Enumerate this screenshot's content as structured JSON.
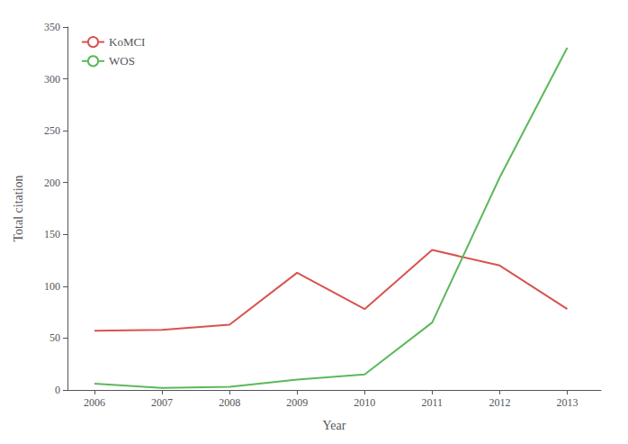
{
  "chart_data": {
    "type": "line",
    "x": [
      2006,
      2007,
      2008,
      2009,
      2010,
      2011,
      2012,
      2013
    ],
    "series": [
      {
        "name": "KoMCI",
        "color": "#d9534f",
        "values": [
          57,
          58,
          63,
          113,
          78,
          135,
          120,
          78
        ]
      },
      {
        "name": "WOS",
        "color": "#5cb85c",
        "values": [
          6,
          2,
          3,
          10,
          15,
          65,
          205,
          330
        ]
      }
    ],
    "xlabel": "Year",
    "ylabel": "Total citation",
    "xlim": [
      2005.6,
      2013.5
    ],
    "xticks": [
      2006,
      2007,
      2008,
      2009,
      2010,
      2011,
      2012,
      2013
    ],
    "ylim": [
      0,
      350
    ],
    "yticks": [
      0,
      50,
      100,
      150,
      200,
      250,
      300,
      350
    ],
    "grid": false,
    "legend": "upper left"
  }
}
